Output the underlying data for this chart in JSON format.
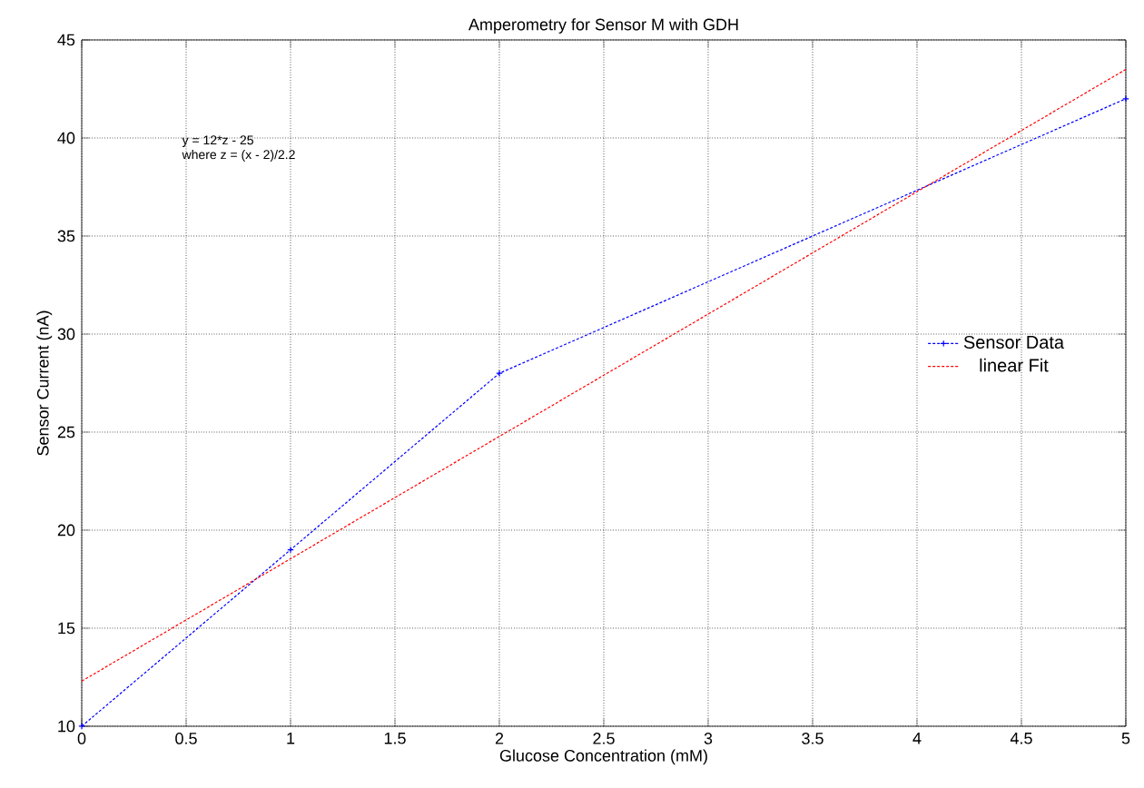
{
  "chart_data": {
    "type": "line",
    "title": "Amperometry for Sensor M with GDH",
    "xlabel": "Glucose Concentration (mM)",
    "ylabel": "Sensor Current (nA)",
    "annotations": [
      "y = 12*z - 25",
      "where z = (x - 2)/2.2"
    ],
    "series": [
      {
        "name": "Sensor Data",
        "color": "#0000ff",
        "x": [
          0,
          1,
          2,
          5
        ],
        "values": [
          10,
          19,
          28,
          42
        ],
        "marker": "cross"
      },
      {
        "name": "linear  Fit",
        "color": "#ff0000",
        "x": [
          0,
          5
        ],
        "values": [
          12.3,
          43.5
        ],
        "marker": "none"
      }
    ],
    "line_style": "dotted",
    "grid": true,
    "legend": "right",
    "xlim": [
      0,
      5
    ],
    "ylim": [
      10,
      45
    ],
    "xticks": [
      0,
      0.5,
      1,
      1.5,
      2,
      2.5,
      3,
      3.5,
      4,
      4.5,
      5
    ],
    "yticks": [
      10,
      15,
      20,
      25,
      30,
      35,
      40,
      45
    ]
  }
}
